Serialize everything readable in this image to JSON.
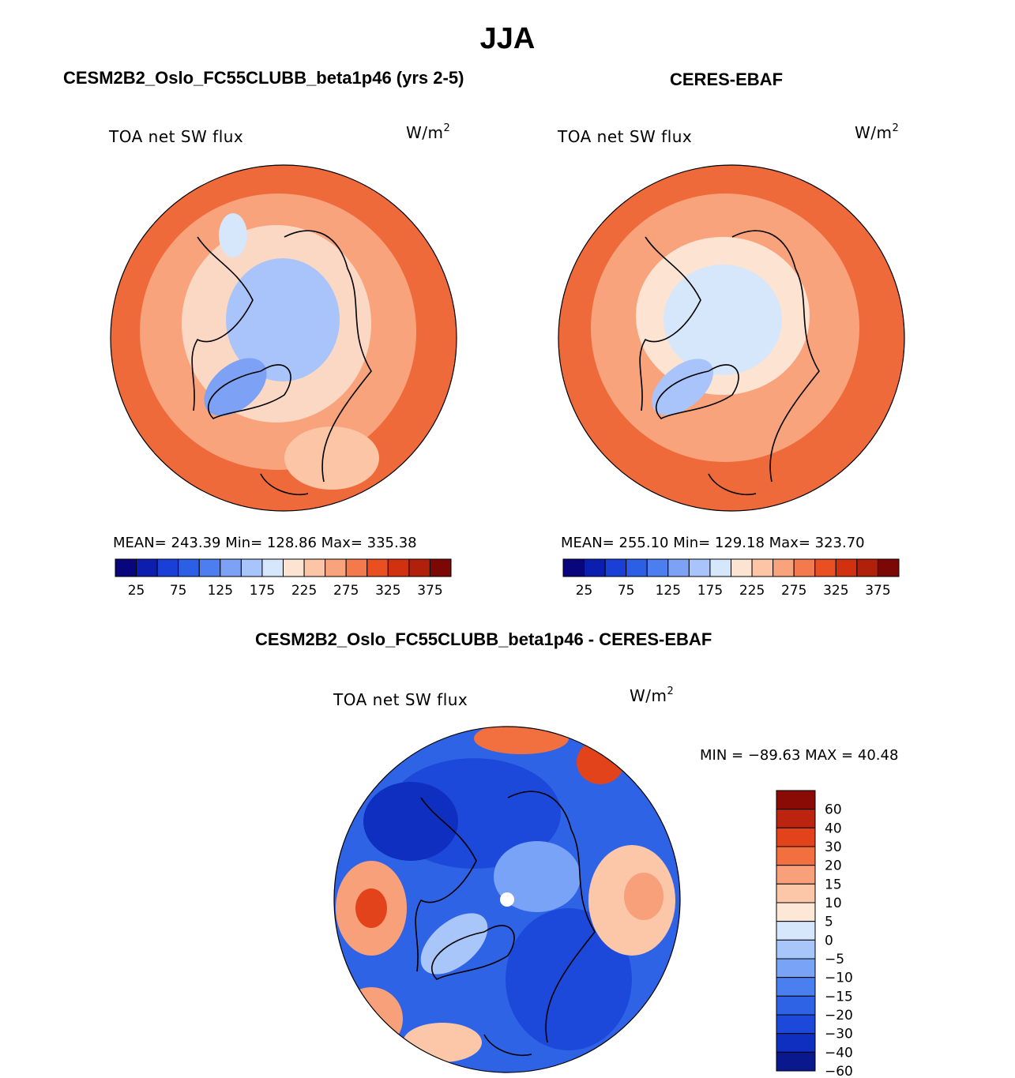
{
  "title": "JJA",
  "colors": {
    "abs_palette": [
      "#08057d",
      "#0b1eb0",
      "#1a3fd6",
      "#2d5ee6",
      "#4d7ef0",
      "#7da2f5",
      "#a9c4fa",
      "#d6e6fb",
      "#fde3d2",
      "#fbc5a6",
      "#f8a37c",
      "#f47a4e",
      "#ea4f22",
      "#d2310f",
      "#b0200b",
      "#7c0806"
    ],
    "diff_palette": [
      "#0a188e",
      "#0f2fc0",
      "#1c49d9",
      "#2f63e6",
      "#4a7ff0",
      "#78a3f6",
      "#a9c6fb",
      "#d6e7fc",
      "#fde7d6",
      "#fbc7a8",
      "#f8a07a",
      "#f2703f",
      "#e2431a",
      "#bd2410",
      "#8a0b05"
    ]
  },
  "panels": [
    {
      "id": "model",
      "heading": "CESM2B2_Oslo_FC55CLUBB_beta1p46 (yrs 2-5)",
      "variable": "TOA net SW flux",
      "units_base": "W/m",
      "units_exp": "2",
      "stats_text": "MEAN= 243.39   Min= 128.86   Max= 335.38"
    },
    {
      "id": "obs",
      "heading": "CERES-EBAF",
      "variable": "TOA net SW flux",
      "units_base": "W/m",
      "units_exp": "2",
      "stats_text": "MEAN= 255.10   Min= 129.18   Max= 323.70"
    },
    {
      "id": "diff",
      "heading": "CESM2B2_Oslo_FC55CLUBB_beta1p46 - CERES-EBAF",
      "variable": "TOA net SW flux",
      "units_base": "W/m",
      "units_exp": "2",
      "stats_text": "MIN = −89.63 MAX =   40.48"
    }
  ],
  "chart_data": [
    {
      "type": "heatmap",
      "projection": "north polar stereographic",
      "panel": "model",
      "title": "CESM2B2_Oslo_FC55CLUBB_beta1p46 (yrs 2-5)",
      "variable": "TOA net SW flux",
      "units": "W/m2",
      "mean": 243.39,
      "min": 128.86,
      "max": 335.38,
      "colorbar_ticks": [
        "25",
        "75",
        "125",
        "175",
        "225",
        "275",
        "325",
        "375"
      ],
      "colorbar_levels": 16
    },
    {
      "type": "heatmap",
      "projection": "north polar stereographic",
      "panel": "obs",
      "title": "CERES-EBAF",
      "variable": "TOA net SW flux",
      "units": "W/m2",
      "mean": 255.1,
      "min": 129.18,
      "max": 323.7,
      "colorbar_ticks": [
        "25",
        "75",
        "125",
        "175",
        "225",
        "275",
        "325",
        "375"
      ],
      "colorbar_levels": 16
    },
    {
      "type": "heatmap",
      "projection": "north polar stereographic",
      "panel": "diff",
      "title": "CESM2B2_Oslo_FC55CLUBB_beta1p46 - CERES-EBAF",
      "variable": "TOA net SW flux",
      "units": "W/m2",
      "min": -89.63,
      "max": 40.48,
      "colorbar_ticks": [
        "60",
        "40",
        "30",
        "20",
        "15",
        "10",
        "5",
        "0",
        "−5",
        "−10",
        "−15",
        "−20",
        "−30",
        "−40",
        "−60"
      ],
      "colorbar_levels": 15
    }
  ]
}
